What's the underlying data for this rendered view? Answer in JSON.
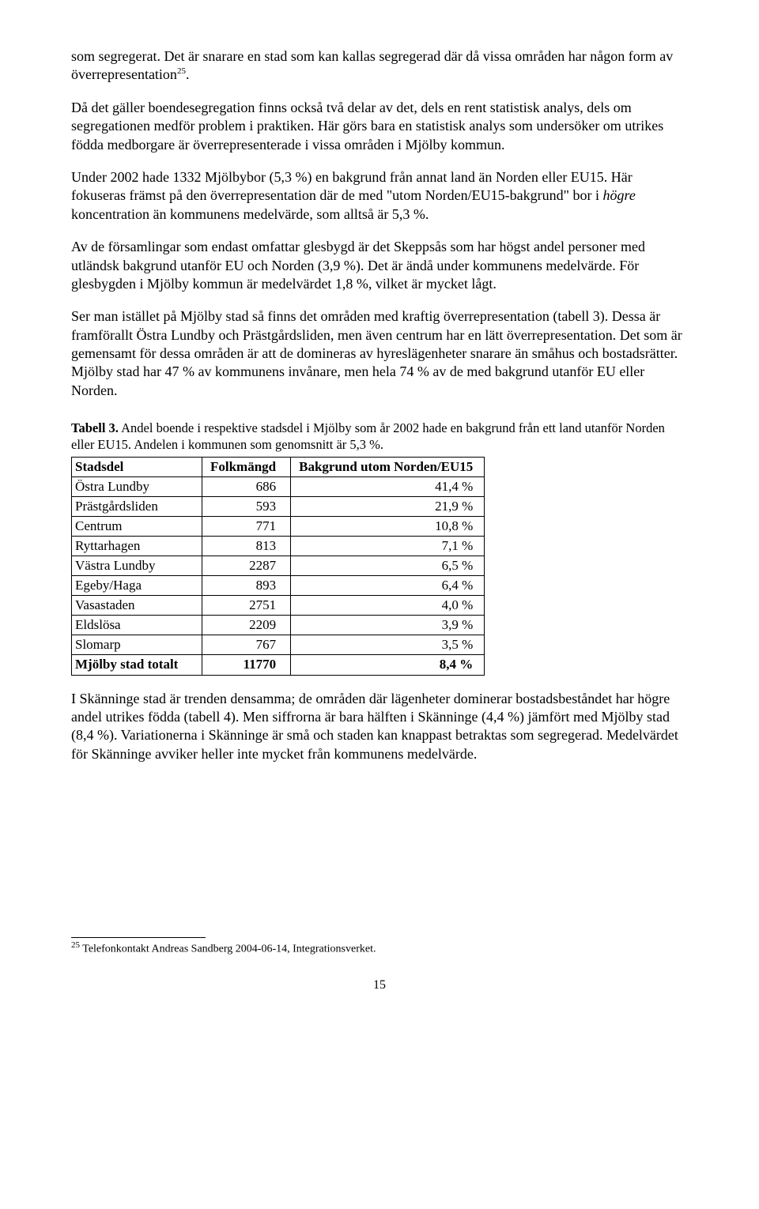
{
  "para1": "som segregerat. Det är snarare en stad som kan kallas segregerad där då vissa områden har någon form av överrepresentation",
  "para1_fn": "25",
  "para1_tail": ".",
  "para2": "Då det gäller boendesegregation finns också två delar av det, dels en rent statistisk analys, dels om segregationen medför problem i praktiken. Här görs bara en statistisk analys som undersöker om utrikes födda medborgare är överrepresenterade i vissa områden i Mjölby kommun.",
  "para3a": "Under 2002 hade 1332 Mjölbybor (5,3 %) en bakgrund från annat land än Norden eller EU15. Här fokuseras främst på den överrepresentation där de med \"utom Norden/EU15-bakgrund\" bor i ",
  "para3_em": "högre",
  "para3b": " koncentration än kommunens medelvärde, som alltså är 5,3 %.",
  "para4": "Av de församlingar som endast omfattar glesbygd är det Skeppsås som har högst andel personer med utländsk bakgrund utanför EU och Norden (3,9 %). Det är ändå under kommunens medelvärde. För glesbygden i Mjölby kommun är medelvärdet 1,8 %, vilket är mycket lågt.",
  "para5": "Ser man istället på Mjölby stad så finns det områden med kraftig överrepresentation (tabell 3). Dessa är framförallt Östra Lundby och Prästgårdsliden, men även centrum har en lätt överrepresentation. Det som är gemensamt för dessa områden är att de domineras av hyreslägenheter snarare än småhus och bostadsrätter. Mjölby stad har 47 % av kommunens invånare, men hela 74 % av de med bakgrund utanför EU eller Norden.",
  "table_caption_bold": "Tabell 3.",
  "table_caption": " Andel boende i respektive stadsdel i Mjölby som år 2002 hade en bakgrund från ett land utanför Norden eller EU15. Andelen i kommunen som genomsnitt är 5,3 %.",
  "table": {
    "columns": [
      "Stadsdel",
      "Folkmängd",
      "Bakgrund utom Norden/EU15"
    ],
    "rows": [
      [
        "Östra Lundby",
        "686",
        "41,4 %"
      ],
      [
        "Prästgårdsliden",
        "593",
        "21,9 %"
      ],
      [
        "Centrum",
        "771",
        "10,8 %"
      ],
      [
        "Ryttarhagen",
        "813",
        "7,1 %"
      ],
      [
        "Västra Lundby",
        "2287",
        "6,5 %"
      ],
      [
        "Egeby/Haga",
        "893",
        "6,4 %"
      ],
      [
        "Vasastaden",
        "2751",
        "4,0 %"
      ],
      [
        "Eldslösa",
        "2209",
        "3,9 %"
      ],
      [
        "Slomarp",
        "767",
        "3,5 %"
      ]
    ],
    "total": [
      "Mjölby stad totalt",
      "11770",
      "8,4 %"
    ]
  },
  "para6": "I Skänninge stad är trenden densamma; de områden där lägenheter dominerar bostadsbeståndet har högre andel utrikes födda (tabell 4). Men siffrorna är bara hälften i Skänninge (4,4 %) jämfört med Mjölby stad (8,4 %). Variationerna i Skänninge är små och staden kan knappast betraktas som segregerad. Medelvärdet för Skänninge avviker heller inte mycket från kommunens medelvärde.",
  "footnote_num": "25",
  "footnote": " Telefonkontakt Andreas Sandberg 2004-06-14, Integrationsverket.",
  "pagenum": "15"
}
